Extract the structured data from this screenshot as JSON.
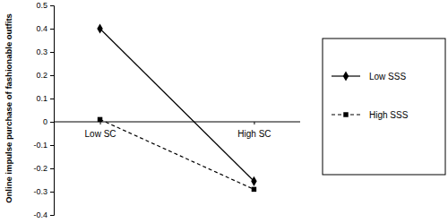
{
  "chart_data": {
    "type": "line",
    "y_label": "Online impulse purchase of fashionable outfits",
    "categories": [
      "Low SC",
      "High SC"
    ],
    "series": [
      {
        "name": "Low SSS",
        "color": "#000000",
        "values": [
          0.4,
          -0.255
        ],
        "marker": "diamond",
        "line_style": "solid"
      },
      {
        "name": "High SSS",
        "color": "#000000",
        "values": [
          0.01,
          -0.29
        ],
        "marker": "square",
        "line_style": "dashed"
      }
    ],
    "ylim": [
      -0.4,
      0.5
    ],
    "yticks": [
      -0.4,
      -0.3,
      -0.2,
      -0.1,
      0,
      0.1,
      0.2,
      0.3,
      0.4,
      0.5
    ],
    "grid": false,
    "legend": "right"
  }
}
